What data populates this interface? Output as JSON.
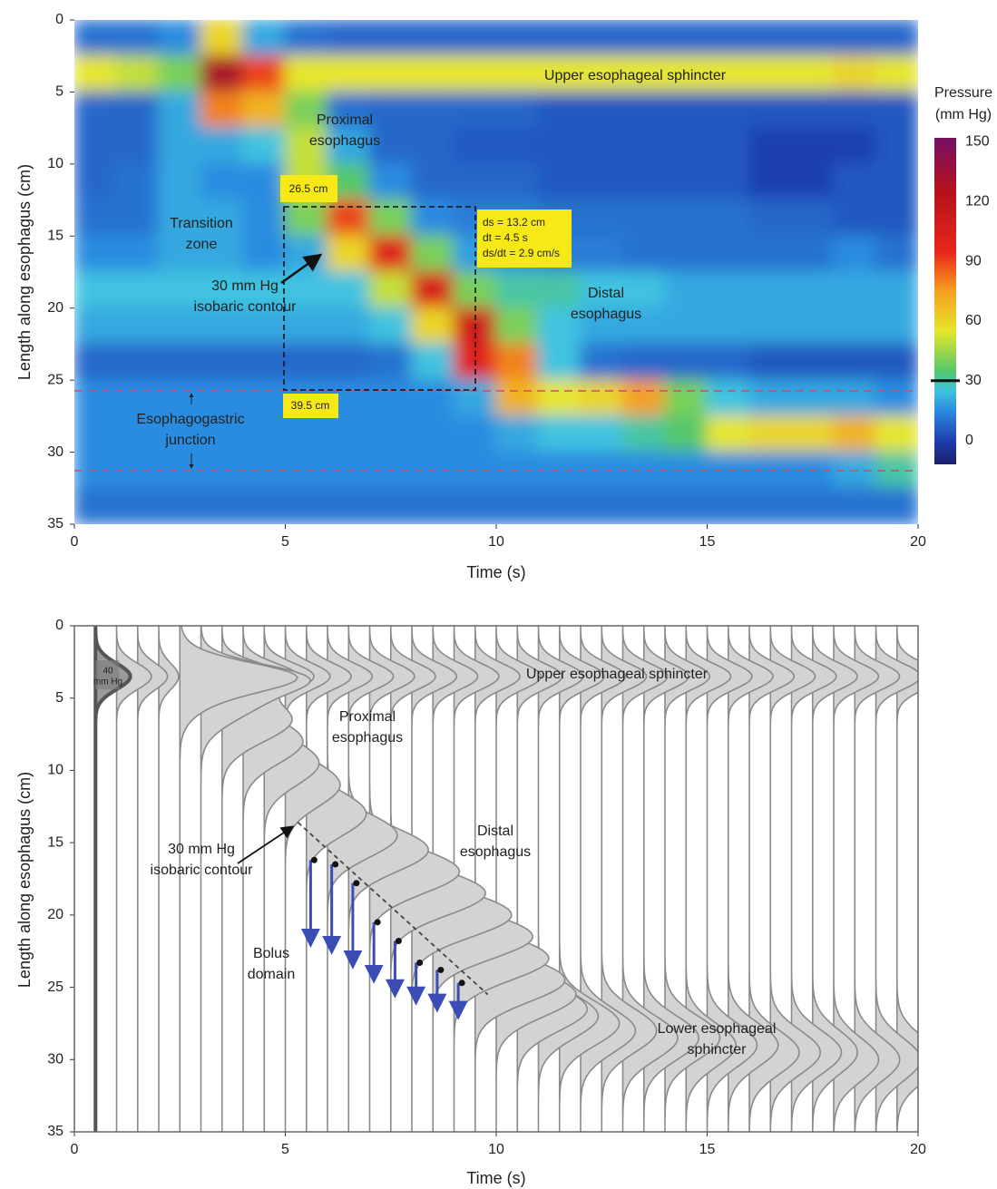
{
  "chart_data": [
    {
      "type": "heatmap",
      "x_label": "Time (s)",
      "y_label": "Length along esophagus (cm)",
      "xlim": [
        0,
        20
      ],
      "xticks": [
        0,
        5,
        10,
        15,
        20
      ],
      "ylim": [
        0,
        35
      ],
      "yticks": [
        0,
        5,
        10,
        15,
        20,
        25,
        30,
        35
      ],
      "y_inverted": true,
      "x_bins": [
        0,
        1,
        2,
        3,
        4,
        5,
        6,
        7,
        8,
        9,
        10,
        11,
        12,
        13,
        14,
        15,
        16,
        17,
        18,
        19,
        20
      ],
      "y_bins": [
        0,
        2.5,
        5,
        7.5,
        10,
        12.5,
        15,
        17.5,
        20,
        22.5,
        25,
        27.5,
        30,
        32.5,
        35
      ],
      "values": [
        [
          10,
          10,
          15,
          60,
          20,
          10,
          8,
          8,
          8,
          8,
          8,
          8,
          8,
          8,
          8,
          8,
          8,
          8,
          8,
          8
        ],
        [
          55,
          50,
          40,
          130,
          90,
          55,
          55,
          55,
          55,
          55,
          55,
          55,
          55,
          55,
          55,
          55,
          55,
          55,
          60,
          55
        ],
        [
          8,
          8,
          20,
          80,
          70,
          40,
          10,
          8,
          8,
          8,
          8,
          5,
          5,
          5,
          5,
          5,
          5,
          5,
          5,
          5
        ],
        [
          8,
          8,
          20,
          20,
          25,
          50,
          20,
          8,
          8,
          5,
          5,
          5,
          5,
          5,
          5,
          5,
          0,
          0,
          0,
          5
        ],
        [
          8,
          10,
          20,
          15,
          15,
          50,
          35,
          15,
          8,
          8,
          8,
          5,
          5,
          5,
          5,
          5,
          0,
          0,
          5,
          5
        ],
        [
          10,
          10,
          20,
          20,
          15,
          40,
          90,
          40,
          15,
          12,
          12,
          10,
          10,
          10,
          10,
          10,
          8,
          8,
          5,
          5
        ],
        [
          15,
          15,
          20,
          20,
          15,
          20,
          60,
          100,
          40,
          18,
          15,
          12,
          12,
          10,
          10,
          10,
          10,
          10,
          15,
          10
        ],
        [
          25,
          25,
          25,
          25,
          25,
          25,
          25,
          50,
          105,
          40,
          30,
          30,
          25,
          25,
          20,
          20,
          20,
          20,
          20,
          20
        ],
        [
          20,
          20,
          20,
          20,
          20,
          20,
          20,
          25,
          60,
          110,
          40,
          25,
          20,
          20,
          20,
          20,
          20,
          20,
          20,
          20
        ],
        [
          8,
          8,
          8,
          8,
          8,
          8,
          8,
          10,
          25,
          100,
          80,
          25,
          10,
          8,
          8,
          8,
          5,
          5,
          5,
          5
        ],
        [
          15,
          15,
          15,
          15,
          15,
          15,
          15,
          15,
          15,
          20,
          70,
          55,
          60,
          75,
          40,
          25,
          20,
          20,
          20,
          15
        ],
        [
          15,
          15,
          15,
          15,
          15,
          15,
          15,
          15,
          15,
          15,
          20,
          25,
          25,
          30,
          35,
          55,
          60,
          60,
          70,
          55
        ],
        [
          15,
          15,
          15,
          15,
          15,
          15,
          15,
          15,
          15,
          15,
          15,
          15,
          15,
          15,
          15,
          15,
          15,
          15,
          20,
          30
        ],
        [
          10,
          10,
          10,
          10,
          10,
          10,
          10,
          10,
          10,
          10,
          10,
          10,
          10,
          10,
          10,
          10,
          10,
          10,
          10,
          10
        ]
      ],
      "colorscale": [
        [
          -12,
          "#1b1f6b"
        ],
        [
          0,
          "#1f3fb0"
        ],
        [
          15,
          "#2b8ce0"
        ],
        [
          25,
          "#3fc3e0"
        ],
        [
          35,
          "#55c86a"
        ],
        [
          55,
          "#e6e62a"
        ],
        [
          75,
          "#f5a020"
        ],
        [
          95,
          "#e8261b"
        ],
        [
          125,
          "#b5121b"
        ],
        [
          150,
          "#7a1060"
        ]
      ],
      "colorbar": {
        "title": [
          "Pressure",
          "(mm Hg)"
        ],
        "lim": [
          -12,
          152
        ],
        "ticks": [
          0,
          30,
          60,
          90,
          120,
          150
        ],
        "contour": 30
      },
      "annotations": [
        [
          "Upper esophageal sphincter"
        ],
        [
          "Proximal",
          "esophagus"
        ],
        [
          "Transition",
          "zone"
        ],
        [
          "30 mm Hg",
          "isobaric contour"
        ],
        [
          "Distal",
          "esophagus"
        ],
        [
          "Esophagogastric",
          "junction"
        ],
        [
          "26.5 cm"
        ],
        [
          "39.5 cm"
        ],
        [
          "ds = 13.2 cm",
          "dt = 4.5 s",
          "ds/dt = 2.9 cm/s"
        ]
      ]
    },
    {
      "type": "traces",
      "x_label": "Time (s)",
      "y_label": "Length along esophagus (cm)",
      "xlim": [
        0,
        20
      ],
      "xticks": [
        0,
        5,
        10,
        15,
        20
      ],
      "ylim": [
        0,
        35
      ],
      "yticks": [
        0,
        5,
        10,
        15,
        20,
        25,
        30,
        35
      ],
      "y_inverted": true,
      "x": [
        0.5,
        1,
        1.5,
        2,
        2.5,
        3,
        3.5,
        4,
        4.5,
        5,
        5.5,
        6,
        6.5,
        7,
        7.5,
        8,
        8.5,
        9,
        9.5,
        10,
        10.5,
        11,
        11.5,
        12,
        12.5,
        13,
        13.5,
        14,
        14.5,
        15,
        15.5,
        16,
        16.5,
        17,
        17.5,
        18,
        18.5,
        19,
        19.5
      ],
      "ues_depth": 3.5,
      "ues_pressure": [
        35,
        35,
        30,
        20,
        70,
        70,
        60,
        55,
        50,
        45,
        45,
        45,
        45,
        45,
        45,
        45,
        45,
        45,
        45,
        45,
        45,
        45,
        45,
        45,
        45,
        45,
        45,
        45,
        45,
        45,
        45,
        45,
        45,
        45,
        45,
        45,
        45,
        45,
        45
      ],
      "peak_depth": [
        null,
        null,
        null,
        null,
        4,
        5,
        6.5,
        8,
        9.5,
        11,
        13,
        14.5,
        15.5,
        17,
        18.5,
        20,
        21.5,
        23,
        24.5,
        25.5,
        26.5,
        27,
        27.5,
        28,
        28,
        28.5,
        28.5,
        28.5,
        29,
        29,
        29,
        29.5,
        29.5,
        29.5,
        29.5,
        30,
        30,
        30,
        30
      ],
      "peak_pressure": [
        null,
        null,
        null,
        null,
        50,
        60,
        70,
        60,
        55,
        55,
        60,
        70,
        80,
        90,
        95,
        100,
        100,
        95,
        90,
        80,
        70,
        60,
        60,
        55,
        55,
        55,
        55,
        55,
        50,
        50,
        50,
        50,
        50,
        50,
        45,
        45,
        45,
        45,
        45
      ],
      "scale_bar": {
        "value": 40,
        "label": [
          "40",
          "mm Hg"
        ]
      },
      "isobaric_contour": {
        "x": [
          5.3,
          9.8
        ],
        "y": [
          13.6,
          25.5
        ]
      },
      "bolus_arrows": {
        "x": [
          5.6,
          6.1,
          6.6,
          7.1,
          7.6,
          8.1,
          8.6,
          9.1
        ],
        "from": [
          16.2,
          16.5,
          17.8,
          20.5,
          21.8,
          23.3,
          23.8,
          24.7
        ],
        "to": [
          22,
          22.5,
          23.5,
          24.5,
          25.5,
          26,
          26.5,
          27
        ]
      },
      "annotations": [
        [
          "Upper esophageal sphincter"
        ],
        [
          "Proximal",
          "esophagus"
        ],
        [
          "Distal",
          "esophagus"
        ],
        [
          "30 mm Hg",
          "isobaric contour"
        ],
        [
          "Bolus",
          "domain"
        ],
        [
          "Lower esophageal",
          "sphincter"
        ]
      ]
    }
  ]
}
